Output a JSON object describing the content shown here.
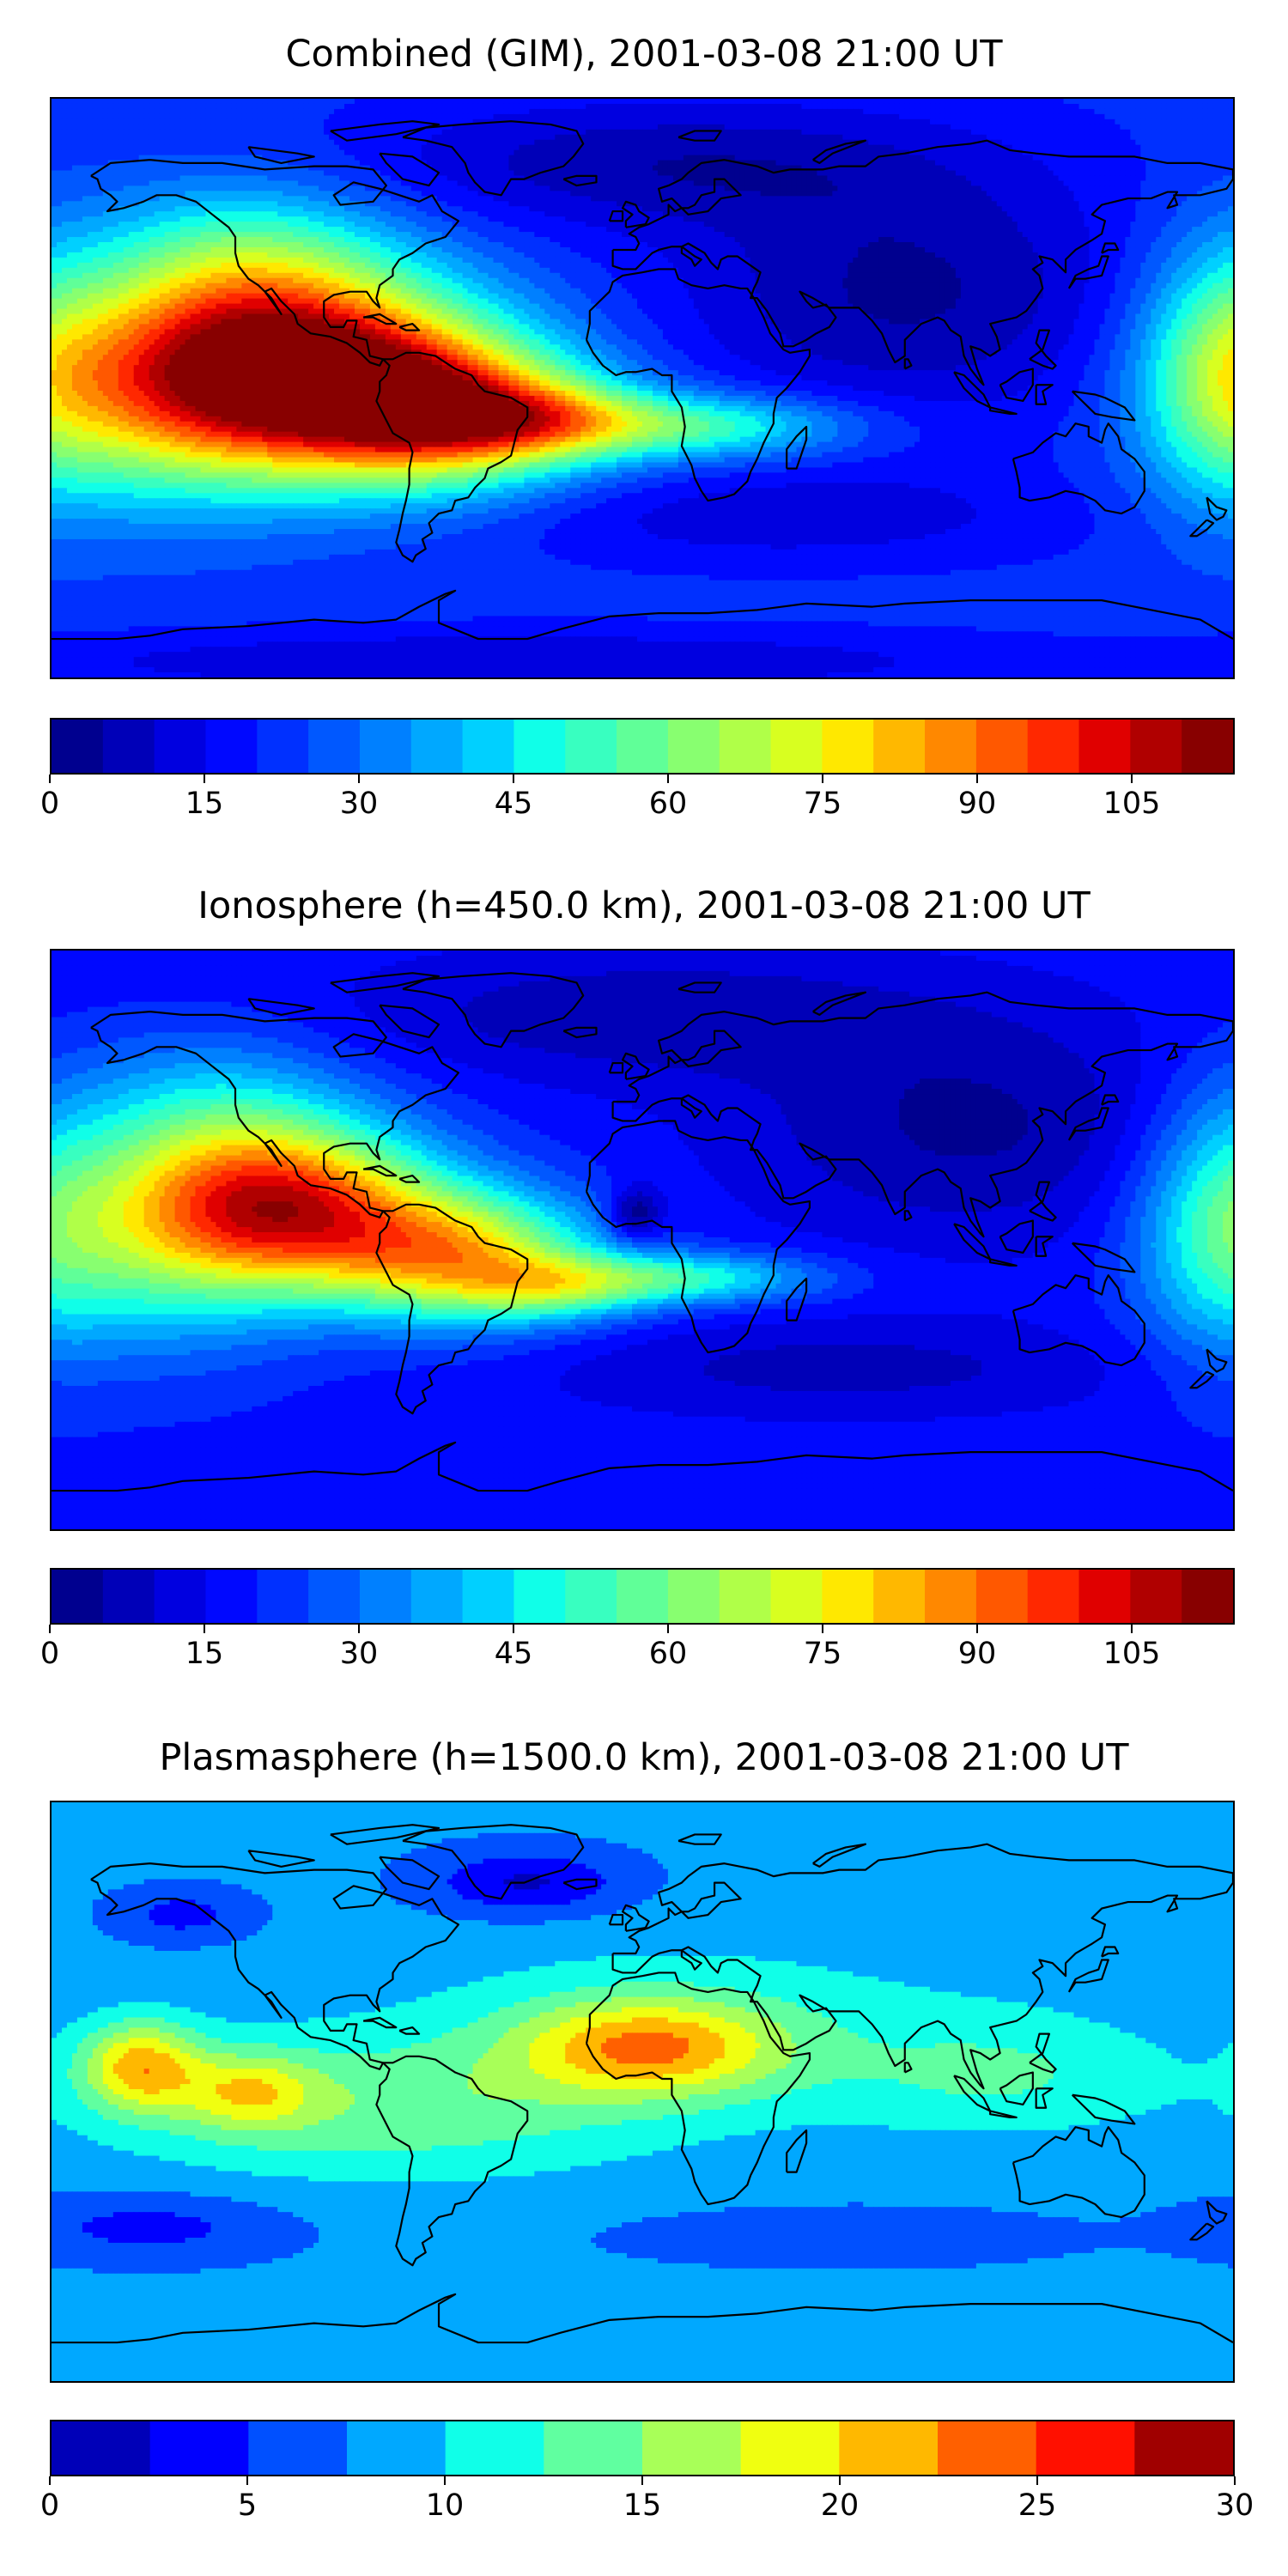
{
  "chart_data": [
    {
      "type": "heatmap",
      "title": "Combined (GIM), 2001-03-08 21:00 UT",
      "xlabel": "",
      "ylabel": "",
      "colorbar": {
        "min": 0,
        "max": 115,
        "step": 5,
        "ticks": [
          0,
          15,
          30,
          45,
          60,
          75,
          90,
          105
        ],
        "colors": [
          "#00008f",
          "#0000b8",
          "#0000e0",
          "#0008ff",
          "#0030ff",
          "#0058ff",
          "#0080ff",
          "#00a8ff",
          "#00d0ff",
          "#10ffe8",
          "#38ffc0",
          "#60ff98",
          "#88ff70",
          "#b0ff48",
          "#d8ff20",
          "#ffe800",
          "#ffb800",
          "#ff8800",
          "#ff5800",
          "#ff2800",
          "#e00000",
          "#b00000",
          "#880000"
        ]
      },
      "features": [
        {
          "label": "peak",
          "value": 110,
          "lon": -103,
          "lat": 5
        },
        {
          "label": "secondary maximum",
          "value": 90,
          "lon": -55,
          "lat": -8
        },
        {
          "label": "minimum",
          "value": 5,
          "lon": 110,
          "lat": 40
        }
      ]
    },
    {
      "type": "heatmap",
      "title": "Ionosphere  (h=450.0 km), 2001-03-08 21:00 UT",
      "xlabel": "",
      "ylabel": "",
      "colorbar": {
        "min": 0,
        "max": 115,
        "step": 5,
        "ticks": [
          0,
          15,
          30,
          45,
          60,
          75,
          90,
          105
        ],
        "colors": [
          "#00008f",
          "#0000b8",
          "#0000e0",
          "#0008ff",
          "#0030ff",
          "#0058ff",
          "#0080ff",
          "#00a8ff",
          "#00d0ff",
          "#10ffe8",
          "#38ffc0",
          "#60ff98",
          "#88ff70",
          "#b0ff48",
          "#d8ff20",
          "#ffe800",
          "#ffb800",
          "#ff8800",
          "#ff5800",
          "#ff2800",
          "#e00000",
          "#b00000",
          "#880000"
        ]
      },
      "features": [
        {
          "label": "peak",
          "value": 95,
          "lon": -108,
          "lat": 10
        },
        {
          "label": "secondary maximum",
          "value": 80,
          "lon": -55,
          "lat": -5
        },
        {
          "label": "minimum",
          "value": 5,
          "lon": 115,
          "lat": 30
        }
      ]
    },
    {
      "type": "heatmap",
      "title": "Plasmasphere (h=1500.0 km), 2001-03-08 21:00 UT",
      "xlabel": "",
      "ylabel": "",
      "colorbar": {
        "min": 0,
        "max": 30,
        "step": 2.5,
        "ticks": [
          0,
          5,
          10,
          15,
          20,
          25,
          30
        ],
        "colors": [
          "#0000b8",
          "#0000ff",
          "#0050ff",
          "#00a8ff",
          "#10ffe8",
          "#60ffa0",
          "#a8ff58",
          "#f0ff10",
          "#ffb800",
          "#ff6000",
          "#ff1000",
          "#a00000"
        ]
      },
      "features": [
        {
          "label": "maximum",
          "value": 21,
          "lon": 2,
          "lat": 14
        },
        {
          "label": "maximum",
          "value": 20,
          "lon": -153,
          "lat": 8
        },
        {
          "label": "minimum",
          "value": 2,
          "lon": -35,
          "lat": 65
        }
      ]
    }
  ]
}
